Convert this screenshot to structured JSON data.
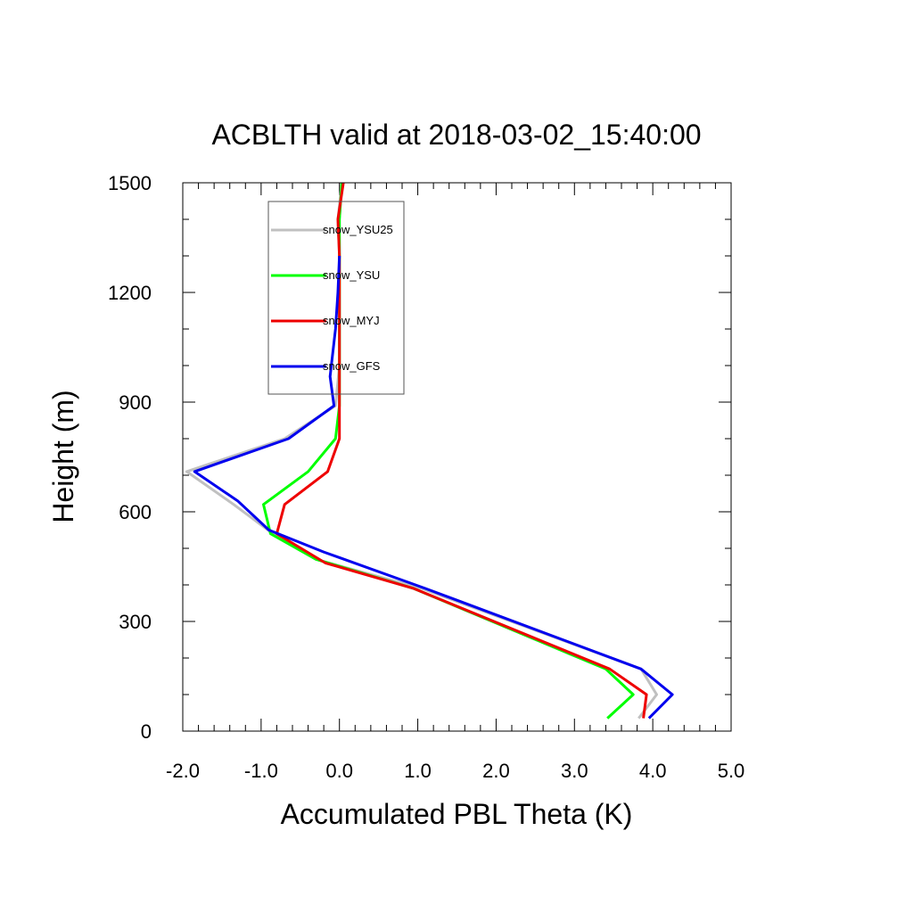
{
  "chart_data": {
    "type": "line",
    "title": "ACBLTH valid at 2018-03-02_15:40:00",
    "xlabel": "Accumulated PBL Theta (K)",
    "ylabel": "Height (m)",
    "xlim": [
      -2.0,
      5.0
    ],
    "ylim": [
      0,
      1500
    ],
    "x_ticks": [
      -2.0,
      -1.0,
      0.0,
      1.0,
      2.0,
      3.0,
      4.0,
      5.0
    ],
    "x_tick_labels": [
      "-2.0",
      "-1.0",
      "0.0",
      "1.0",
      "2.0",
      "3.0",
      "4.0",
      "5.0"
    ],
    "y_ticks": [
      0,
      300,
      600,
      900,
      1200,
      1500
    ],
    "y_tick_labels": [
      "0",
      "300",
      "600",
      "900",
      "1200",
      "1500"
    ],
    "grid": false,
    "legend_position": "top-left",
    "series": [
      {
        "name": "snow_YSU25",
        "color": "#c0c0c0",
        "points": [
          [
            3.82,
            35
          ],
          [
            4.05,
            100
          ],
          [
            3.85,
            170
          ],
          [
            1.05,
            390
          ],
          [
            -0.3,
            470
          ],
          [
            -0.85,
            540
          ],
          [
            -1.35,
            620
          ],
          [
            -1.95,
            710
          ],
          [
            -0.7,
            800
          ],
          [
            -0.05,
            890
          ],
          [
            0.0,
            1000
          ],
          [
            0.0,
            1100
          ],
          [
            0.0,
            1200
          ],
          [
            0.0,
            1300
          ],
          [
            -0.02,
            1400
          ],
          [
            0.03,
            1500
          ]
        ]
      },
      {
        "name": "snow_YSU",
        "color": "#00ff00",
        "points": [
          [
            3.42,
            35
          ],
          [
            3.75,
            100
          ],
          [
            3.4,
            170
          ],
          [
            0.95,
            390
          ],
          [
            -0.3,
            470
          ],
          [
            -0.88,
            540
          ],
          [
            -0.97,
            620
          ],
          [
            -0.4,
            710
          ],
          [
            -0.05,
            800
          ],
          [
            0.0,
            890
          ],
          [
            0.0,
            1000
          ],
          [
            0.0,
            1100
          ],
          [
            0.0,
            1200
          ],
          [
            0.0,
            1300
          ],
          [
            0.0,
            1400
          ],
          [
            0.03,
            1500
          ]
        ]
      },
      {
        "name": "snow_MYJ",
        "color": "#ee0000",
        "points": [
          [
            3.88,
            35
          ],
          [
            3.92,
            100
          ],
          [
            3.45,
            170
          ],
          [
            0.95,
            390
          ],
          [
            -0.18,
            460
          ],
          [
            -0.8,
            540
          ],
          [
            -0.7,
            620
          ],
          [
            -0.15,
            710
          ],
          [
            0.0,
            800
          ],
          [
            0.0,
            890
          ],
          [
            0.0,
            1000
          ],
          [
            0.0,
            1100
          ],
          [
            0.0,
            1200
          ],
          [
            0.0,
            1300
          ],
          [
            -0.02,
            1400
          ],
          [
            0.05,
            1500
          ]
        ]
      },
      {
        "name": "snow_GFS",
        "color": "#0000ee",
        "points": [
          [
            3.95,
            35
          ],
          [
            4.25,
            100
          ],
          [
            3.85,
            170
          ],
          [
            1.1,
            390
          ],
          [
            -0.2,
            490
          ],
          [
            -0.9,
            550
          ],
          [
            -1.3,
            630
          ],
          [
            -1.85,
            710
          ],
          [
            -0.65,
            800
          ],
          [
            -0.07,
            890
          ],
          [
            -0.12,
            970
          ],
          [
            -0.05,
            1100
          ],
          [
            -0.02,
            1200
          ],
          [
            0.0,
            1300
          ]
        ]
      }
    ]
  }
}
